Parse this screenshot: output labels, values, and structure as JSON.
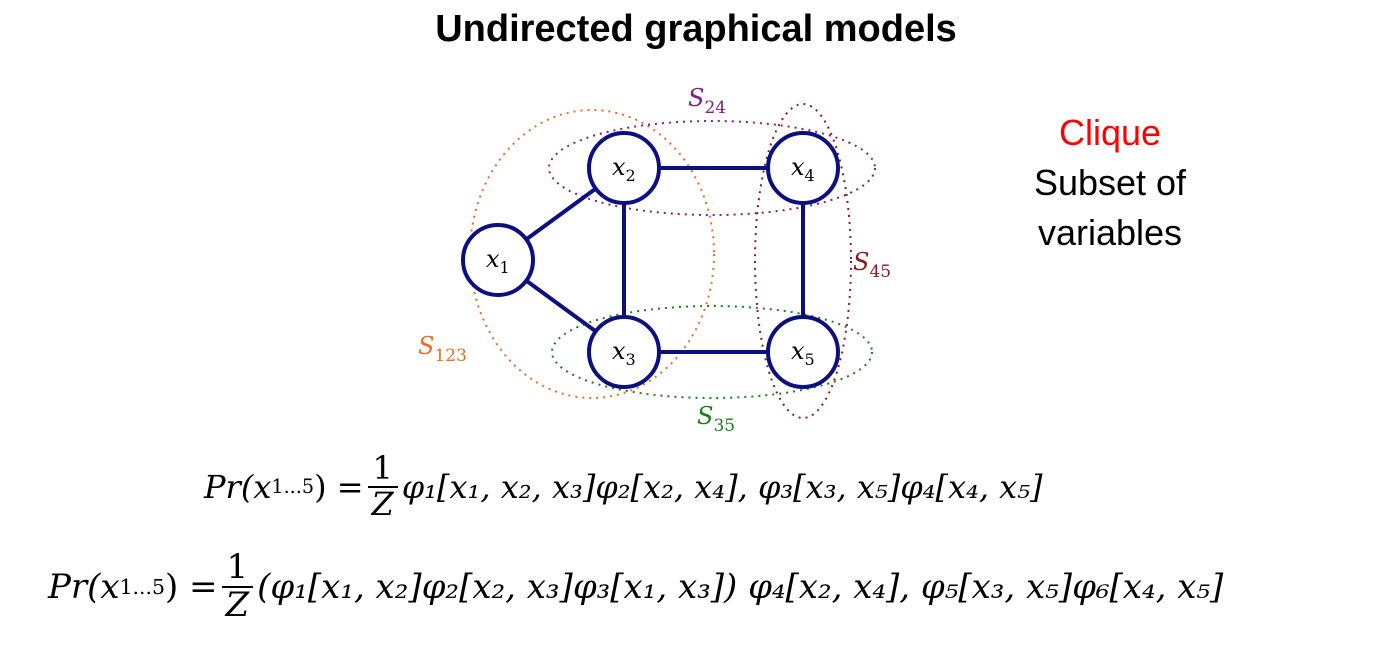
{
  "title": "Undirected graphical models",
  "side_text": {
    "heading": "Clique",
    "line1": "Subset of",
    "line2": "variables"
  },
  "nodes": [
    {
      "id": "x1",
      "var": "x",
      "sub": "1"
    },
    {
      "id": "x2",
      "var": "x",
      "sub": "2"
    },
    {
      "id": "x3",
      "var": "x",
      "sub": "3"
    },
    {
      "id": "x4",
      "var": "x",
      "sub": "4"
    },
    {
      "id": "x5",
      "var": "x",
      "sub": "5"
    }
  ],
  "edges": [
    [
      "x1",
      "x2"
    ],
    [
      "x1",
      "x3"
    ],
    [
      "x2",
      "x3"
    ],
    [
      "x2",
      "x4"
    ],
    [
      "x3",
      "x5"
    ],
    [
      "x4",
      "x5"
    ]
  ],
  "cliques": [
    {
      "id": "S123",
      "label": "S",
      "sub": "123",
      "color": "#f26a21"
    },
    {
      "id": "S24",
      "label": "S",
      "sub": "24",
      "color": "#7f1f86"
    },
    {
      "id": "S45",
      "label": "S",
      "sub": "45",
      "color": "#8b1a1a"
    },
    {
      "id": "S35",
      "label": "S",
      "sub": "35",
      "color": "#1a7f1a"
    }
  ],
  "colors": {
    "node_stroke": "#0c0f80",
    "edge": "#0c0f80",
    "s123": "#f26a21",
    "s24": "#7f1f86",
    "s45": "#8b1a1a",
    "s35": "#1a7f1a",
    "clique_word": "#ff0000"
  },
  "equations": {
    "eq1": {
      "lhs": "Pr(x",
      "lhs_sub": "1...5",
      "lhs_end": ") =",
      "frac_num": "1",
      "frac_den": "Z",
      "rhs": "φ₁[x₁, x₂, x₃]φ₂[x₂, x₄], φ₃[x₃, x₅]φ₄[x₄, x₅]"
    },
    "eq2": {
      "lhs": "Pr(x",
      "lhs_sub": "1...5",
      "lhs_end": ") =",
      "frac_num": "1",
      "frac_den": "Z",
      "rhs": "(φ₁[x₁, x₂]φ₂[x₂, x₃]φ₃[x₁, x₃]) φ₄[x₂, x₄], φ₅[x₃, x₅]φ₆[x₄, x₅]"
    }
  }
}
